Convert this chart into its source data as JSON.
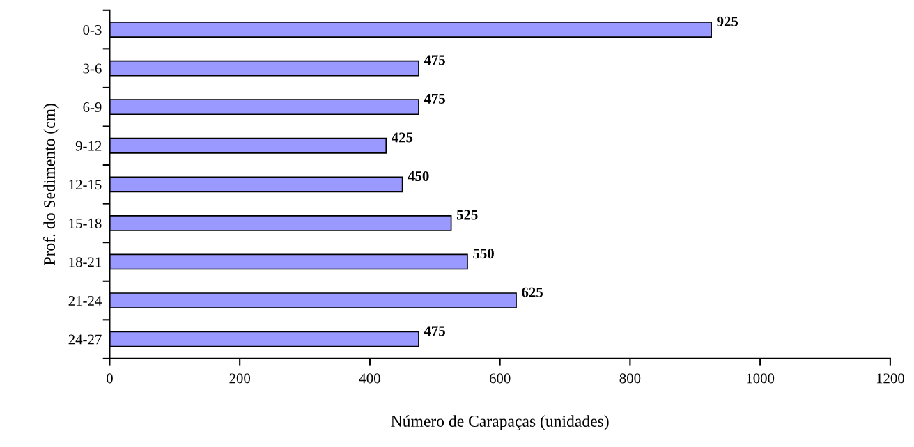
{
  "chart_data": {
    "type": "bar",
    "orientation": "horizontal",
    "categories": [
      "0-3",
      "3-6",
      "6-9",
      "9-12",
      "12-15",
      "15-18",
      "18-21",
      "21-24",
      "24-27"
    ],
    "values": [
      925,
      475,
      475,
      425,
      450,
      525,
      550,
      625,
      475
    ],
    "color": "#9999ff",
    "xlabel": "Número de Carapaças (unidades)",
    "ylabel": "Prof. do Sedimento (cm)",
    "xlim": [
      0,
      1200
    ],
    "xticks": [
      0,
      200,
      400,
      600,
      800,
      1000,
      1200
    ],
    "data_labels": true,
    "grid": false,
    "legend": false
  }
}
